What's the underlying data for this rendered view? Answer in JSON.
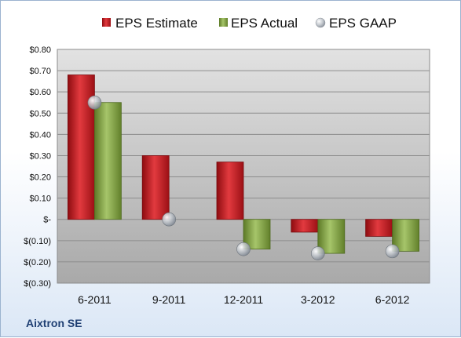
{
  "chart_data": {
    "type": "bar",
    "title": "",
    "company": "Aixtron SE",
    "categories": [
      "6-2011",
      "9-2011",
      "12-2011",
      "3-2012",
      "6-2012"
    ],
    "series": [
      {
        "name": "EPS Estimate",
        "kind": "bar",
        "color": "#c0141b",
        "values": [
          0.68,
          0.3,
          0.27,
          -0.06,
          -0.08
        ]
      },
      {
        "name": "EPS Actual",
        "kind": "bar",
        "color": "#7a9a3a",
        "values": [
          0.55,
          null,
          -0.14,
          -0.16,
          -0.15
        ]
      },
      {
        "name": "EPS GAAP",
        "kind": "marker",
        "color": "#a9b0b8",
        "values": [
          0.55,
          0.0,
          -0.14,
          -0.16,
          -0.15
        ]
      }
    ],
    "ylim": [
      -0.3,
      0.8
    ],
    "yticks": [
      0.8,
      0.7,
      0.6,
      0.5,
      0.4,
      0.3,
      0.2,
      0.1,
      0.0,
      -0.1,
      -0.2,
      -0.3
    ],
    "ytick_labels": [
      "$0.80",
      "$0.70",
      "$0.60",
      "$0.50",
      "$0.40",
      "$0.30",
      "$0.20",
      "$0.10",
      "$-",
      "$(0.10)",
      "$(0.20)",
      "$(0.30)"
    ],
    "grid": true,
    "legend": "top"
  }
}
